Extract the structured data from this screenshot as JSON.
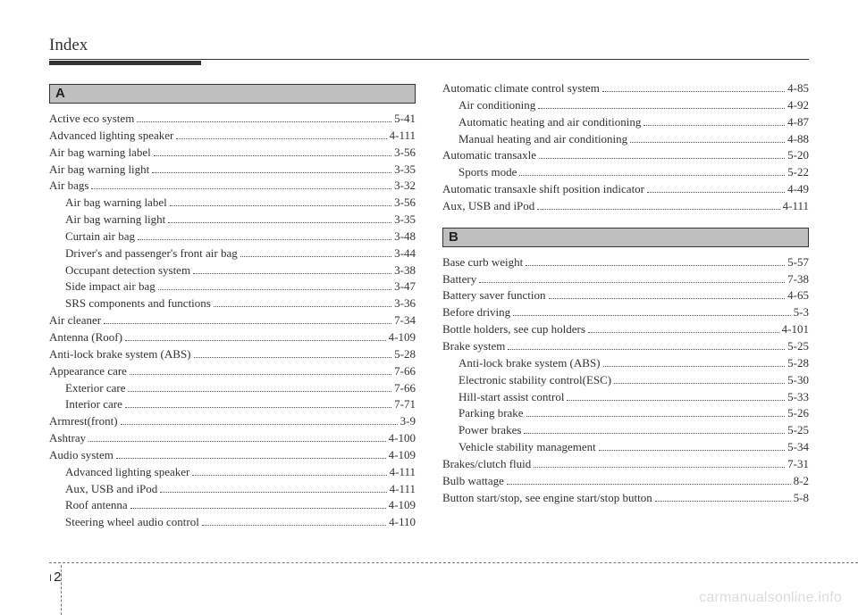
{
  "header": {
    "title": "Index"
  },
  "sections": {
    "A": {
      "letter": "A",
      "entries": [
        {
          "label": "Active eco system",
          "page": "5-41",
          "sub": false
        },
        {
          "label": "Advanced lighting speaker",
          "page": "4-111",
          "sub": false
        },
        {
          "label": "Air bag warning label",
          "page": "3-56",
          "sub": false
        },
        {
          "label": "Air bag warning light",
          "page": "3-35",
          "sub": false
        },
        {
          "label": "Air bags",
          "page": "3-32",
          "sub": false
        },
        {
          "label": "Air bag warning label",
          "page": "3-56",
          "sub": true
        },
        {
          "label": "Air bag warning light",
          "page": "3-35",
          "sub": true
        },
        {
          "label": "Curtain air bag",
          "page": "3-48",
          "sub": true
        },
        {
          "label": "Driver's and passenger's front air bag",
          "page": "3-44",
          "sub": true
        },
        {
          "label": "Occupant detection system",
          "page": "3-38",
          "sub": true
        },
        {
          "label": "Side impact air bag",
          "page": "3-47",
          "sub": true
        },
        {
          "label": "SRS components and functions",
          "page": "3-36",
          "sub": true
        },
        {
          "label": "Air cleaner",
          "page": "7-34",
          "sub": false
        },
        {
          "label": "Antenna (Roof)",
          "page": "4-109",
          "sub": false
        },
        {
          "label": "Anti-lock brake system (ABS)",
          "page": "5-28",
          "sub": false
        },
        {
          "label": "Appearance care",
          "page": "7-66",
          "sub": false
        },
        {
          "label": "Exterior care",
          "page": "7-66",
          "sub": true
        },
        {
          "label": "Interior care",
          "page": "7-71",
          "sub": true
        },
        {
          "label": "Armrest(front)",
          "page": "3-9",
          "sub": false
        },
        {
          "label": "Ashtray",
          "page": "4-100",
          "sub": false
        },
        {
          "label": "Audio system",
          "page": "4-109",
          "sub": false
        },
        {
          "label": "Advanced lighting speaker",
          "page": "4-111",
          "sub": true
        },
        {
          "label": "Aux, USB and iPod",
          "page": "4-111",
          "sub": true
        },
        {
          "label": "Roof antenna",
          "page": "4-109",
          "sub": true
        },
        {
          "label": "Steering wheel audio control",
          "page": "4-110",
          "sub": true
        }
      ]
    },
    "A2": {
      "entries": [
        {
          "label": "Automatic climate control system",
          "page": "4-85",
          "sub": false
        },
        {
          "label": "Air conditioning",
          "page": "4-92",
          "sub": true
        },
        {
          "label": "Automatic heating and air conditioning",
          "page": "4-87",
          "sub": true
        },
        {
          "label": "Manual heating and air conditioning",
          "page": "4-88",
          "sub": true
        },
        {
          "label": "Automatic transaxle",
          "page": "5-20",
          "sub": false
        },
        {
          "label": "Sports mode",
          "page": "5-22",
          "sub": true
        },
        {
          "label": "Automatic transaxle shift position indicator",
          "page": "4-49",
          "sub": false
        },
        {
          "label": "Aux, USB and iPod",
          "page": "4-111",
          "sub": false
        }
      ]
    },
    "B": {
      "letter": "B",
      "entries": [
        {
          "label": "Base curb weight",
          "page": "5-57",
          "sub": false
        },
        {
          "label": "Battery",
          "page": "7-38",
          "sub": false
        },
        {
          "label": "Battery saver function",
          "page": "4-65",
          "sub": false
        },
        {
          "label": "Before driving",
          "page": "5-3",
          "sub": false
        },
        {
          "label": "Bottle holders, see cup holders",
          "page": "4-101",
          "sub": false
        },
        {
          "label": "Brake system",
          "page": "5-25",
          "sub": false
        },
        {
          "label": "Anti-lock brake system (ABS)",
          "page": "5-28",
          "sub": true
        },
        {
          "label": "Electronic stability control(ESC)",
          "page": "5-30",
          "sub": true
        },
        {
          "label": "Hill-start assist control",
          "page": "5-33",
          "sub": true
        },
        {
          "label": "Parking brake",
          "page": "5-26",
          "sub": true
        },
        {
          "label": "Power brakes",
          "page": "5-25",
          "sub": true
        },
        {
          "label": "Vehicle stability management",
          "page": "5-34",
          "sub": true
        },
        {
          "label": "Brakes/clutch fluid",
          "page": "7-31",
          "sub": false
        },
        {
          "label": "Bulb wattage",
          "page": "8-2",
          "sub": false
        },
        {
          "label": "Button start/stop, see engine start/stop button",
          "page": "5-8",
          "sub": false
        }
      ]
    }
  },
  "footer": {
    "chapter": "I",
    "page": "2"
  },
  "watermark": "carmanualsonline.info"
}
